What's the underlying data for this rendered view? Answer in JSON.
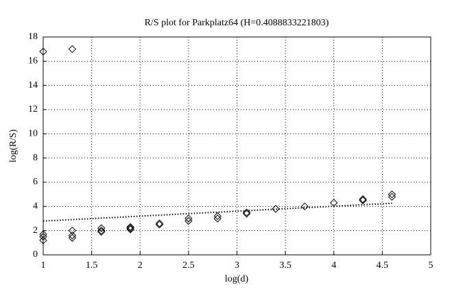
{
  "chart_data": {
    "type": "scatter",
    "title": "R/S plot for Parkplatz64 (H=0.4088833221803)",
    "x_label": "log(d)",
    "y_label": "log(R/S)",
    "xlim": [
      1,
      5
    ],
    "xticks": [
      1,
      1.5,
      2,
      2.5,
      3,
      3.5,
      4,
      4.5,
      5
    ],
    "ylim": [
      0,
      18
    ],
    "yticks": [
      0,
      2,
      4,
      6,
      8,
      10,
      12,
      14,
      16,
      18
    ],
    "grid": true,
    "series": [
      {
        "type": "scatter",
        "marker": "diamond",
        "color": "#000000",
        "x": [
          1,
          1,
          1,
          1,
          1.3,
          1.3,
          1.3,
          1.3,
          1.6,
          1.6,
          1.6,
          1.9,
          1.9,
          1.9,
          2.2,
          2.2,
          2.5,
          2.5,
          2.8,
          2.8,
          3.1,
          3.1,
          3.4,
          3.7,
          4.0,
          4.3,
          4.3,
          4.6,
          4.6
        ],
        "values": [
          16.8,
          1.7,
          1.5,
          1.2,
          17.0,
          2.0,
          1.6,
          1.4,
          2.2,
          2.0,
          1.9,
          2.3,
          2.2,
          2.1,
          2.6,
          2.5,
          3.0,
          2.8,
          3.2,
          3.0,
          3.5,
          3.4,
          3.8,
          4.0,
          4.3,
          4.6,
          4.5,
          5.0,
          4.8
        ]
      },
      {
        "type": "line",
        "style": "dotted",
        "color": "#000000",
        "x": [
          1,
          4.6
        ],
        "values": [
          2.79,
          4.26
        ]
      }
    ]
  }
}
